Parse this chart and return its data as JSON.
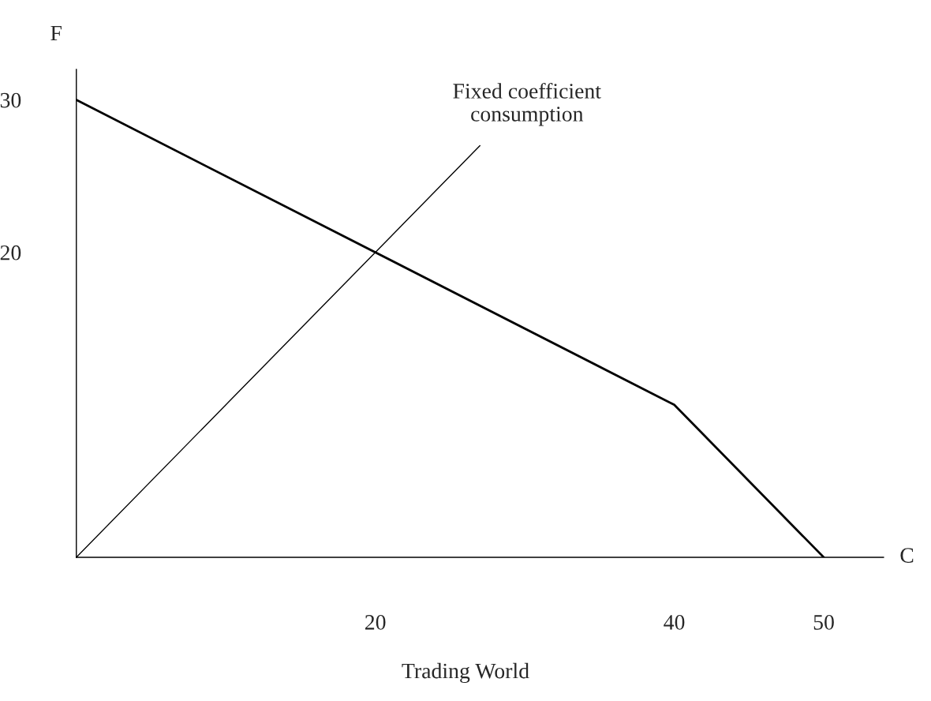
{
  "chart_data": {
    "type": "line",
    "xlabel": "C",
    "ylabel": "F",
    "series": [
      {
        "x": [
          0,
          40,
          50
        ],
        "values": [
          30,
          10,
          0
        ],
        "color": "#000000"
      },
      {
        "x": [
          0,
          27
        ],
        "values": [
          0,
          27
        ],
        "color": "#000000"
      }
    ],
    "xlim": [
      0,
      54
    ],
    "ylim": [
      0,
      32
    ],
    "xticks": [
      20,
      40,
      50
    ],
    "yticks": [
      20,
      30
    ],
    "grid": false,
    "legend": false,
    "marker": "none",
    "line_style": "solid",
    "annotations": [
      {
        "text": "Fixed coefficient\nconsumption",
        "x": 27,
        "y": 27
      },
      "Trading World"
    ]
  }
}
